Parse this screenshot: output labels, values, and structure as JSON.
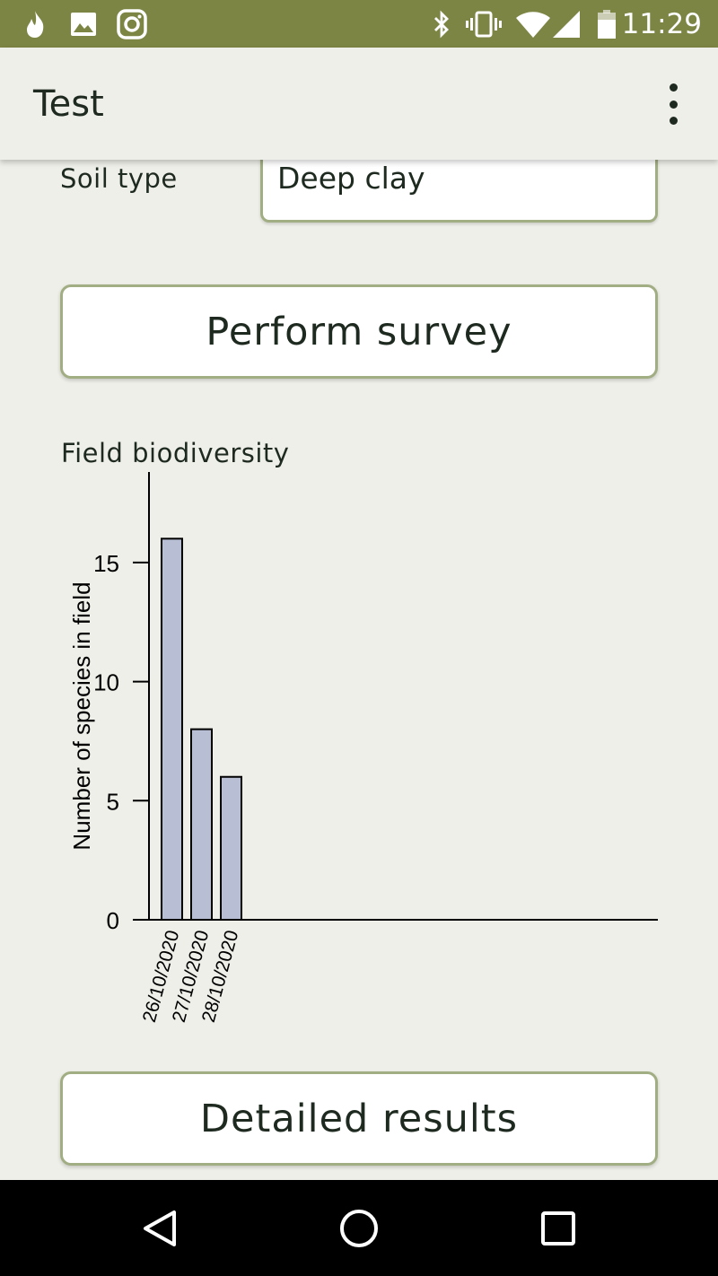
{
  "status_bar": {
    "time": "11:29",
    "left_icons": [
      "flame-icon",
      "image-icon",
      "instagram-icon"
    ],
    "right_icons": [
      "bluetooth-icon",
      "vibrate-icon",
      "wifi-icon",
      "signal-icon",
      "battery-icon"
    ],
    "color": "#7d8544"
  },
  "app_bar": {
    "title": "Test",
    "menu_icon": "more-vert-icon"
  },
  "form": {
    "soil_label": "Soil type",
    "soil_value": "Deep clay"
  },
  "buttons": {
    "survey_label": "Perform survey",
    "details_label": "Detailed results"
  },
  "chart_heading": "Field biodiversity",
  "chart_data": {
    "type": "bar",
    "categories": [
      "26/10/2020",
      "27/10/2020",
      "28/10/2020"
    ],
    "values": [
      16,
      8,
      6
    ],
    "title": "",
    "xlabel": "",
    "ylabel": "Number of species in field",
    "ylim": [
      0,
      18.8
    ],
    "yticks": [
      0,
      5,
      10,
      15
    ],
    "bar_color": "#b8bed4",
    "grid": false
  },
  "nav_bar": {
    "icons": [
      "back-icon",
      "home-icon",
      "recents-icon"
    ]
  }
}
